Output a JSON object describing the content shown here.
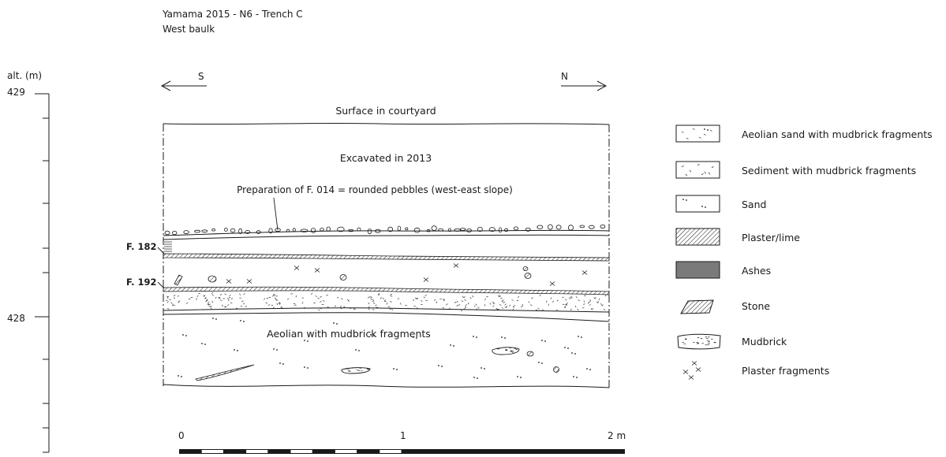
{
  "title": {
    "line1": "Yamama 2015 - N6 - Trench C",
    "line2": "West baulk"
  },
  "altitude_scale": {
    "label": "alt. (m)",
    "ticks": [
      "429",
      "428"
    ]
  },
  "orientation": {
    "south": "S",
    "north": "N"
  },
  "section": {
    "surface": "Surface in courtyard",
    "excavated": "Excavated in 2013",
    "preparation": "Preparation of F. 014 = rounded pebbles (west-east slope)",
    "feature_1": "F. 182",
    "feature_2": "F. 192",
    "aeolian": "Aeolian with mudbrick fragments"
  },
  "legend": [
    {
      "key": "aeolian-sand",
      "label": "Aeolian sand with mudbrick fragments"
    },
    {
      "key": "sediment",
      "label": "Sediment with mudbrick fragments"
    },
    {
      "key": "sand",
      "label": "Sand"
    },
    {
      "key": "plaster",
      "label": "Plaster/lime"
    },
    {
      "key": "ashes",
      "label": "Ashes"
    },
    {
      "key": "stone",
      "label": "Stone"
    },
    {
      "key": "mudbrick",
      "label": "Mudbrick"
    },
    {
      "key": "plaster-fragments",
      "label": "Plaster fragments"
    }
  ],
  "scale_bar": {
    "labels": [
      "0",
      "1",
      "2 m"
    ]
  },
  "colors": {
    "ink": "#1a1a1a",
    "ashes": "#7a7a7a"
  }
}
